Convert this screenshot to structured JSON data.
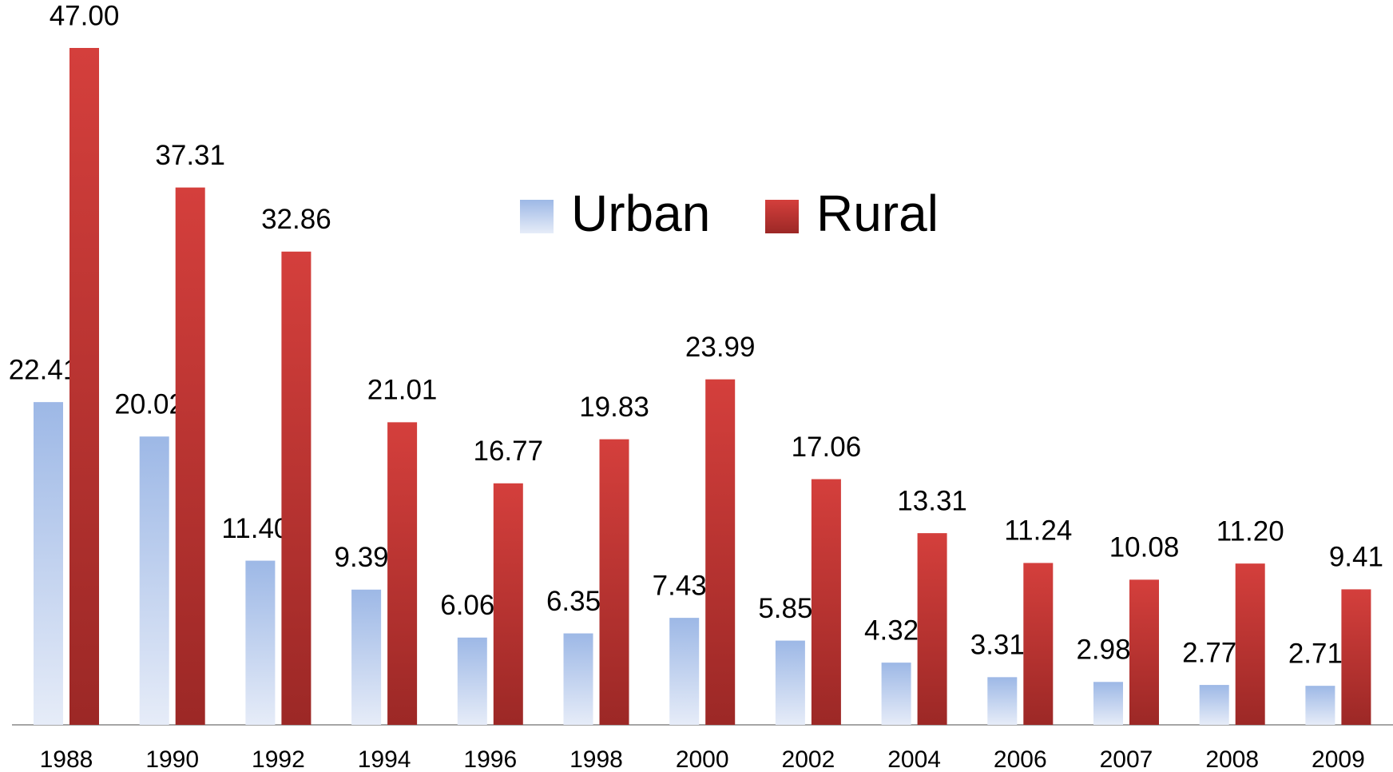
{
  "chart_data": {
    "type": "bar",
    "categories": [
      "1988",
      "1990",
      "1992",
      "1994",
      "1996",
      "1998",
      "2000",
      "2002",
      "2004",
      "2006",
      "2007",
      "2008",
      "2009"
    ],
    "series": [
      {
        "name": "Urban",
        "color": "#9db8e6",
        "values": [
          22.41,
          20.02,
          11.4,
          9.39,
          6.06,
          6.35,
          7.43,
          5.85,
          4.32,
          3.31,
          2.98,
          2.77,
          2.71
        ],
        "value_labels": [
          "22.41",
          "20.02",
          "11.40",
          "9.39",
          "6.06",
          "6.35",
          "7.43",
          "5.85",
          "4.32",
          "3.31",
          "2.98",
          "2.77",
          "2.71"
        ]
      },
      {
        "name": "Rural",
        "color": "#c93a37",
        "values": [
          47,
          37.31,
          32.86,
          21.01,
          16.77,
          19.83,
          23.99,
          17.06,
          13.31,
          11.24,
          10.08,
          11.2,
          9.41
        ],
        "value_labels": [
          "47.00",
          "37.31",
          "32.86",
          "21.01",
          "16.77",
          "19.83",
          "23.99",
          "17.06",
          "13.31",
          "11.24",
          "10.08",
          "11.20",
          "9.41"
        ]
      }
    ]
  }
}
